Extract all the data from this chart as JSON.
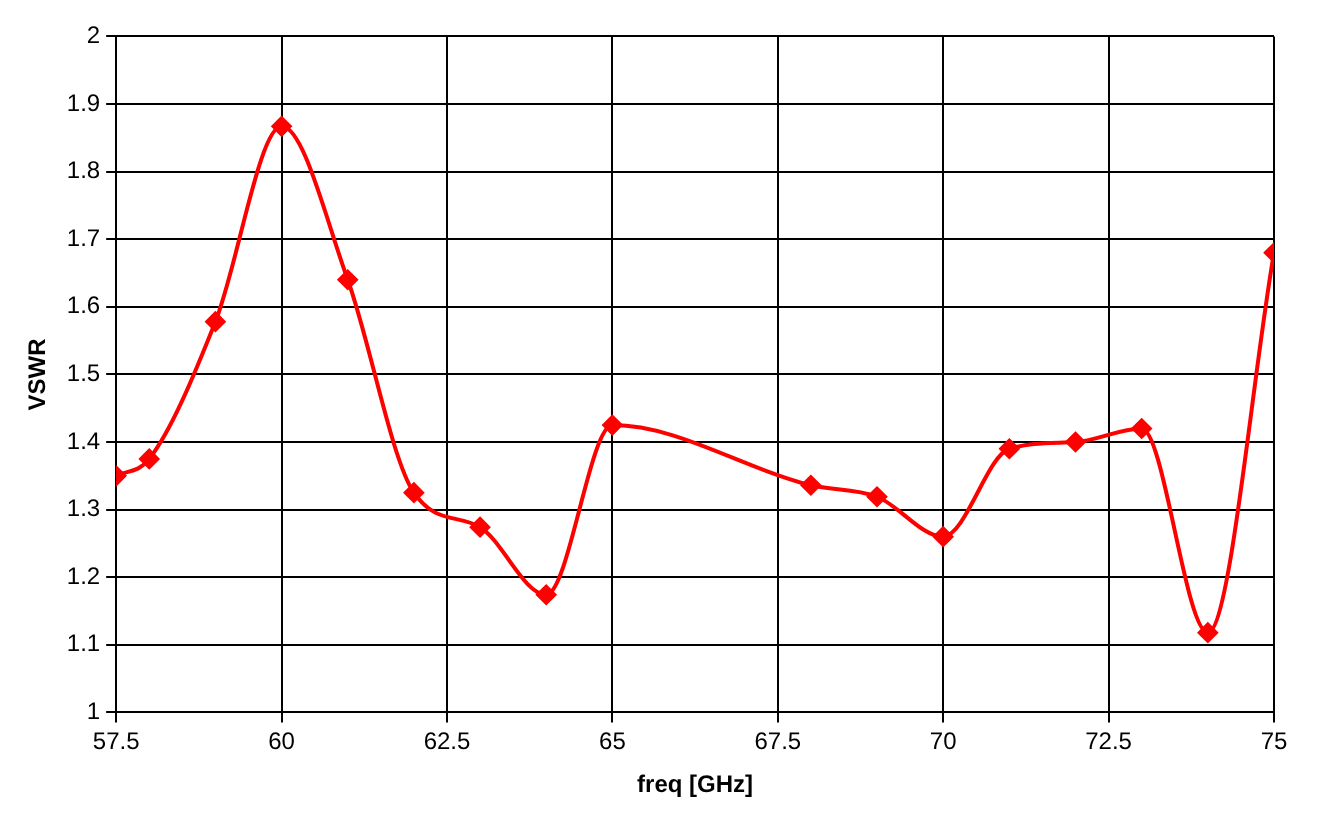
{
  "chart_data": {
    "type": "line",
    "xlabel": "freq [GHz]",
    "ylabel": "VSWR",
    "x": [
      57.5,
      58,
      59,
      60,
      61,
      62,
      63,
      64,
      65,
      68,
      69,
      70,
      71,
      72,
      73,
      74,
      75
    ],
    "series": [
      {
        "color": "#ff0000",
        "values": [
          1.35,
          1.375,
          1.578,
          1.867,
          1.64,
          1.325,
          1.274,
          1.174,
          1.425,
          1.336,
          1.319,
          1.26,
          1.39,
          1.4,
          1.42,
          1.118,
          1.68
        ]
      }
    ],
    "xlim": [
      57.5,
      75
    ],
    "xticks": [
      57.5,
      60,
      62.5,
      65,
      67.5,
      70,
      72.5,
      75
    ],
    "ylim": [
      1,
      2
    ],
    "yticks": [
      1,
      1.1,
      1.2,
      1.3,
      1.4,
      1.5,
      1.6,
      1.7,
      1.8,
      1.9,
      2
    ],
    "grid": true,
    "legend": false,
    "marker": "diamond",
    "line_style": "solid"
  }
}
